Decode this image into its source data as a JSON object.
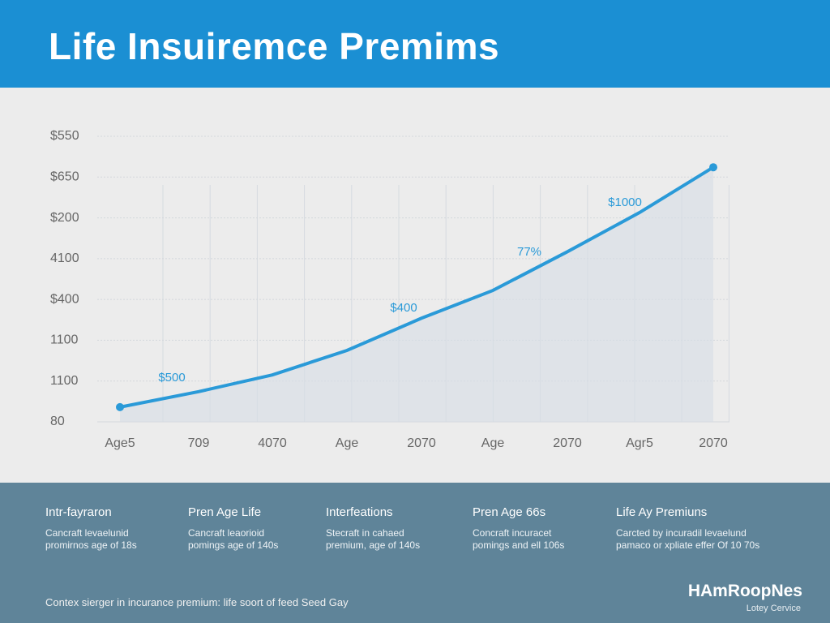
{
  "header": {
    "title": "Life Insuiremce Premims"
  },
  "chart_data": {
    "type": "line",
    "categories": [
      "Age5",
      "709",
      "4070",
      "Age",
      "2070",
      "Age",
      "2070",
      "Agr5",
      "2070"
    ],
    "series": [
      {
        "color": "#2a9ad8",
        "values": [
          0.36,
          0.74,
          1.15,
          1.75,
          2.54,
          3.22,
          4.17,
          5.13,
          6.24
        ]
      }
    ],
    "ylim": [
      0,
      7
    ],
    "yticks": [
      {
        "value": 0,
        "label": "80"
      },
      {
        "value": 1,
        "label": "1100"
      },
      {
        "value": 2,
        "label": "1100"
      },
      {
        "value": 3,
        "label": "$400"
      },
      {
        "value": 4,
        "label": "4100"
      },
      {
        "value": 5,
        "label": "$200"
      },
      {
        "value": 6,
        "label": "$650"
      },
      {
        "value": 7,
        "label": "$550"
      }
    ],
    "grid": true,
    "annotations": [
      "$500",
      "$400",
      "77%",
      "$1000"
    ]
  },
  "info": [
    {
      "heading": "Intr-fayraron",
      "lines": [
        "Cancraft levaelunid",
        "promirnos age of 18s"
      ]
    },
    {
      "heading": "Pren Age Life",
      "lines": [
        "Cancraft leaorioid",
        "pomings age of 140s"
      ]
    },
    {
      "heading": "Interfeations",
      "lines": [
        "Stecraft in cahaed",
        "premium, age of 140s"
      ]
    },
    {
      "heading": "Pren Age 66s",
      "lines": [
        "Concraft incuracet",
        "pomings and ell 106s"
      ]
    },
    {
      "heading": "Life Ay Premiuns",
      "lines": [
        "Carcted by incuradil levaelund",
        "pamaco or xpliate effer Of 10 70s"
      ]
    }
  ],
  "footer": {
    "note": "Contex sierger in incurance premium: life soort of feed Seed Gay",
    "brand": "HAmRoopNes",
    "tagline": "Lotey Cervice"
  }
}
